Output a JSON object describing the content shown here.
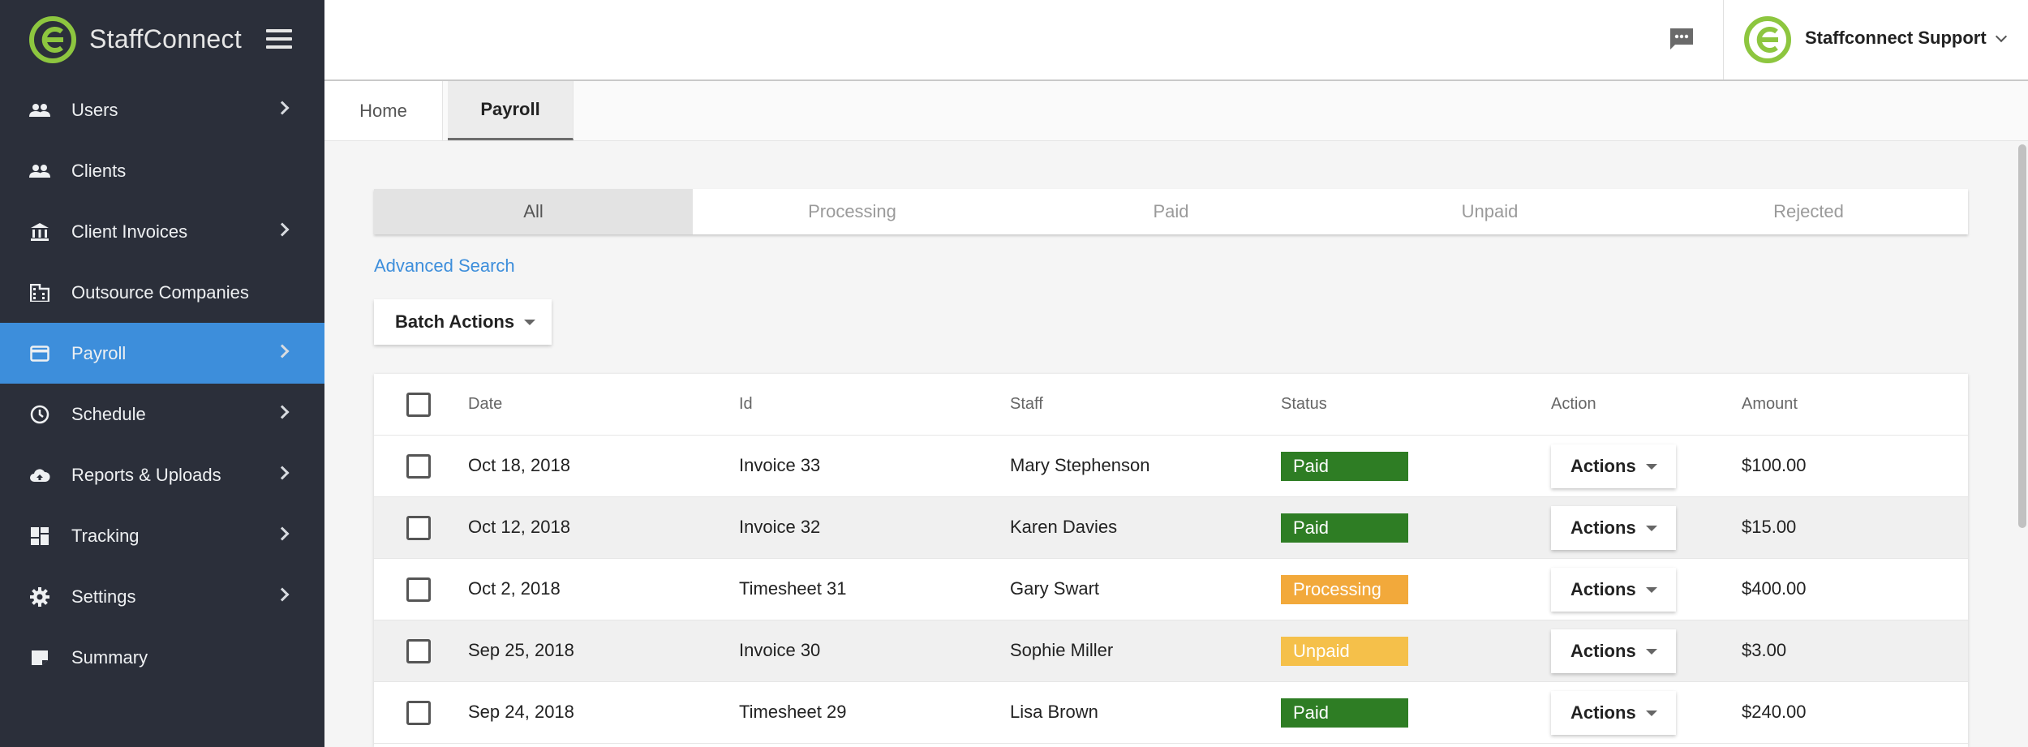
{
  "brand": {
    "name": "StaffConnect",
    "logo_color": "#8dc63f"
  },
  "sidebar": {
    "items": [
      {
        "label": "Users",
        "icon": "users-icon",
        "chevron": true,
        "active": false
      },
      {
        "label": "Clients",
        "icon": "clients-icon",
        "chevron": false,
        "active": false
      },
      {
        "label": "Client Invoices",
        "icon": "bank-icon",
        "chevron": true,
        "active": false
      },
      {
        "label": "Outsource Companies",
        "icon": "building-icon",
        "chevron": false,
        "active": false
      },
      {
        "label": "Payroll",
        "icon": "credit-card-icon",
        "chevron": true,
        "active": true
      },
      {
        "label": "Schedule",
        "icon": "clock-icon",
        "chevron": true,
        "active": false
      },
      {
        "label": "Reports & Uploads",
        "icon": "cloud-upload-icon",
        "chevron": true,
        "active": false
      },
      {
        "label": "Tracking",
        "icon": "dashboard-icon",
        "chevron": true,
        "active": false
      },
      {
        "label": "Settings",
        "icon": "gear-icon",
        "chevron": true,
        "active": false
      },
      {
        "label": "Summary",
        "icon": "note-icon",
        "chevron": false,
        "active": false
      }
    ]
  },
  "header": {
    "user_name": "Staffconnect Support"
  },
  "tabs": [
    {
      "label": "Home",
      "active": false
    },
    {
      "label": "Payroll",
      "active": true
    }
  ],
  "filters": [
    {
      "label": "All",
      "active": true
    },
    {
      "label": "Processing",
      "active": false
    },
    {
      "label": "Paid",
      "active": false
    },
    {
      "label": "Unpaid",
      "active": false
    },
    {
      "label": "Rejected",
      "active": false
    }
  ],
  "advanced_search": "Advanced Search",
  "batch_actions": "Batch Actions",
  "table": {
    "headers": {
      "date": "Date",
      "id": "Id",
      "staff": "Staff",
      "status": "Status",
      "action": "Action",
      "amount": "Amount"
    },
    "action_label": "Actions",
    "rows": [
      {
        "date": "Oct 18, 2018",
        "id": "Invoice 33",
        "staff": "Mary Stephenson",
        "status": "Paid",
        "amount": "$100.00"
      },
      {
        "date": "Oct 12, 2018",
        "id": "Invoice 32",
        "staff": "Karen Davies",
        "status": "Paid",
        "amount": "$15.00"
      },
      {
        "date": "Oct 2, 2018",
        "id": "Timesheet 31",
        "staff": "Gary Swart",
        "status": "Processing",
        "amount": "$400.00"
      },
      {
        "date": "Sep 25, 2018",
        "id": "Invoice 30",
        "staff": "Sophie Miller",
        "status": "Unpaid",
        "amount": "$3.00"
      },
      {
        "date": "Sep 24, 2018",
        "id": "Timesheet 29",
        "staff": "Lisa Brown",
        "status": "Paid",
        "amount": "$240.00"
      }
    ]
  },
  "status_colors": {
    "Paid": "#2e7d24",
    "Processing": "#f2a93b",
    "Unpaid": "#f5c04a"
  }
}
